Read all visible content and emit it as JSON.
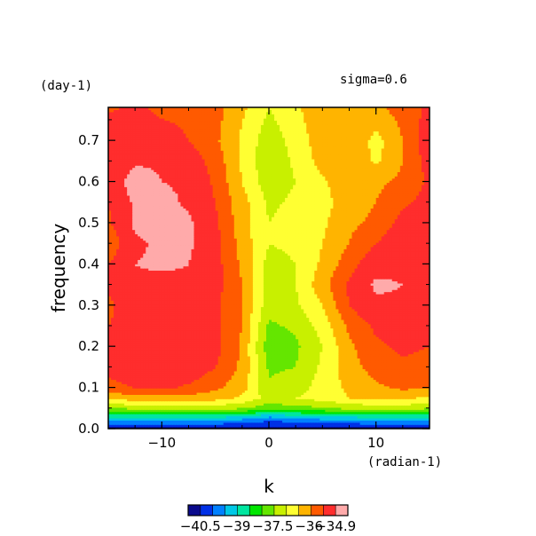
{
  "chart_data": {
    "type": "heatmap",
    "title": "",
    "annotation": "sigma=0.6",
    "xlabel": "k",
    "ylabel": "frequency",
    "x_unit": "(radian-1)",
    "y_unit": "(day-1)",
    "xlim": [
      -15,
      15
    ],
    "ylim": [
      0,
      0.78
    ],
    "x_ticks": [
      -10,
      0,
      10
    ],
    "x_tick_labels": [
      "−10",
      "0",
      "10"
    ],
    "y_ticks": [
      0.0,
      0.1,
      0.2,
      0.3,
      0.4,
      0.5,
      0.6,
      0.7
    ],
    "y_tick_labels": [
      "0.0",
      "0.1",
      "0.2",
      "0.3",
      "0.4",
      "0.5",
      "0.6",
      "0.7"
    ],
    "x": [
      -15,
      -12.5,
      -10,
      -7.5,
      -5,
      -2.5,
      0,
      2.5,
      5,
      7.5,
      10,
      12.5,
      15
    ],
    "y": [
      0,
      0.025,
      0.05,
      0.075,
      0.1,
      0.15,
      0.2,
      0.25,
      0.3,
      0.35,
      0.4,
      0.45,
      0.5,
      0.55,
      0.6,
      0.65,
      0.7,
      0.78
    ],
    "z": [
      [
        -40.8,
        -40.8,
        -40.8,
        -40.8,
        -40.8,
        -40.8,
        -40.8,
        -40.8,
        -40.8,
        -40.8,
        -40.8,
        -40.8,
        -40.8
      ],
      [
        -39.2,
        -39.2,
        -39.2,
        -39.2,
        -39.2,
        -39.4,
        -39.8,
        -39.6,
        -39.4,
        -39.3,
        -39.2,
        -39.2,
        -39.2
      ],
      [
        -37.6,
        -37.4,
        -37.3,
        -37.3,
        -37.3,
        -37.5,
        -37.8,
        -37.7,
        -37.6,
        -37.4,
        -37.3,
        -37.3,
        -37.5
      ],
      [
        -36.4,
        -36.2,
        -36.2,
        -36.2,
        -36.3,
        -36.6,
        -37.2,
        -37.0,
        -36.8,
        -36.5,
        -36.4,
        -36.4,
        -36.6
      ],
      [
        -35.7,
        -35.5,
        -35.4,
        -35.6,
        -35.9,
        -36.3,
        -37.4,
        -37.2,
        -36.8,
        -36.4,
        -36.1,
        -35.9,
        -36.0
      ],
      [
        -35.3,
        -35.1,
        -35.0,
        -35.1,
        -35.5,
        -36.1,
        -37.6,
        -37.5,
        -36.9,
        -36.2,
        -35.8,
        -35.6,
        -35.7
      ],
      [
        -35.4,
        -35.1,
        -35.0,
        -35.1,
        -35.3,
        -36.1,
        -37.8,
        -37.6,
        -37.0,
        -36.1,
        -35.6,
        -35.4,
        -35.5
      ],
      [
        -35.5,
        -35.3,
        -35.2,
        -35.3,
        -35.4,
        -36.0,
        -37.6,
        -37.4,
        -36.8,
        -35.9,
        -35.4,
        -35.3,
        -35.5
      ],
      [
        -35.6,
        -35.2,
        -35.3,
        -35.2,
        -35.4,
        -36.0,
        -37.3,
        -37.1,
        -36.5,
        -35.5,
        -35.0,
        -35.0,
        -35.5
      ],
      [
        -35.4,
        -35.0,
        -35.1,
        -35.0,
        -35.3,
        -36.0,
        -37.2,
        -37.0,
        -36.2,
        -35.4,
        -34.8,
        -34.9,
        -35.5
      ],
      [
        -35.5,
        -34.9,
        -34.8,
        -34.9,
        -35.3,
        -36.1,
        -37.2,
        -37.0,
        -36.4,
        -35.7,
        -35.1,
        -35.0,
        -35.3
      ],
      [
        -35.9,
        -35.0,
        -34.8,
        -34.8,
        -35.3,
        -36.2,
        -37.0,
        -36.9,
        -36.5,
        -36.0,
        -35.5,
        -35.0,
        -35.1
      ],
      [
        -35.6,
        -34.8,
        -34.6,
        -34.8,
        -35.4,
        -36.3,
        -37.0,
        -36.8,
        -36.6,
        -36.1,
        -35.9,
        -35.3,
        -35.2
      ],
      [
        -35.5,
        -34.8,
        -34.7,
        -35.0,
        -35.5,
        -36.3,
        -37.1,
        -36.9,
        -36.7,
        -36.2,
        -36.0,
        -35.6,
        -35.3
      ],
      [
        -35.5,
        -34.5,
        -34.9,
        -35.0,
        -35.6,
        -36.5,
        -37.3,
        -37.0,
        -36.6,
        -36.1,
        -36.1,
        -35.9,
        -35.4
      ],
      [
        -35.5,
        -35.0,
        -35.0,
        -35.2,
        -35.7,
        -36.6,
        -37.4,
        -36.9,
        -36.3,
        -36.0,
        -36.6,
        -36.0,
        -35.3
      ],
      [
        -35.0,
        -35.1,
        -35.3,
        -35.5,
        -35.9,
        -36.6,
        -37.3,
        -36.8,
        -36.2,
        -36.0,
        -36.7,
        -36.0,
        -35.1
      ],
      [
        -35.6,
        -35.4,
        -35.6,
        -35.6,
        -35.8,
        -36.4,
        -37.0,
        -36.6,
        -36.1,
        -36.0,
        -36.1,
        -35.8,
        -35.4
      ]
    ],
    "levels": [
      -40.5,
      -40,
      -39.5,
      -39,
      -38.5,
      -38,
      -37.5,
      -37,
      -36.5,
      -36,
      -35.5,
      -34.9
    ],
    "colorbar": {
      "colors": [
        "#0a0a8c",
        "#0030e6",
        "#0080ff",
        "#00c8e6",
        "#00e6a0",
        "#00e600",
        "#64e600",
        "#c8f000",
        "#ffff32",
        "#ffb400",
        "#ff5a00",
        "#ff2d2d",
        "#ffaaaa"
      ],
      "labels": [
        "−40.5",
        "−39",
        "−37.5",
        "−36",
        "−34.9"
      ],
      "label_levels": [
        -40.5,
        -39,
        -37.5,
        -36,
        -34.9
      ]
    }
  }
}
